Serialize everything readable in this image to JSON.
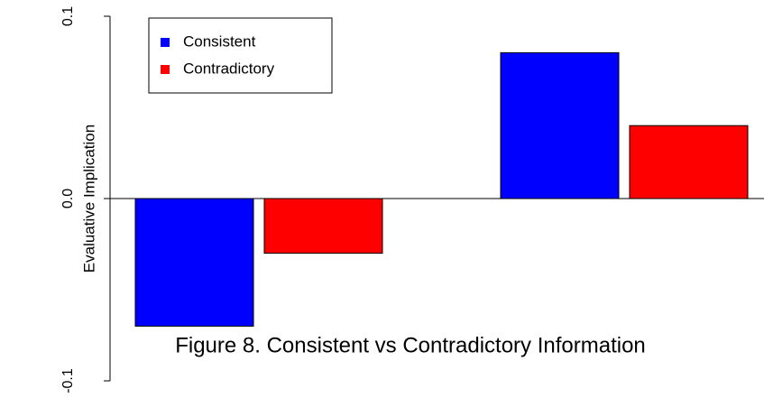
{
  "chart_data": {
    "type": "bar",
    "title": "Figure 8. Consistent vs Contradictory Information",
    "y_label": "Evaluative Implication",
    "categories": [
      null,
      null
    ],
    "series": [
      {
        "name": "Consistent",
        "color": "#0000ff",
        "values": [
          -0.07,
          0.08
        ]
      },
      {
        "name": "Contradictory",
        "color": "#ff0000",
        "values": [
          -0.03,
          0.04
        ]
      }
    ],
    "ylim": [
      -0.1,
      0.1
    ],
    "yticks": [
      -0.1,
      {
        "value": 0,
        "label": "0.0"
      },
      0.1
    ],
    "legend": "top-left"
  }
}
